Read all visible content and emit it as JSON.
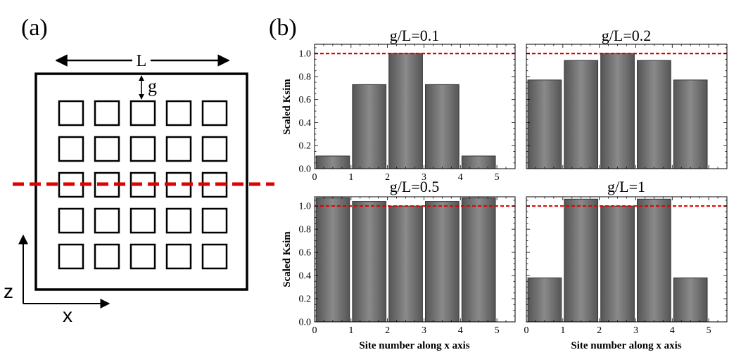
{
  "colors": {
    "bar": "#6e6e6e",
    "bar_light": "#9a9a9a",
    "bar_dark": "#505050",
    "reference_line": "#e00000",
    "outline": "#000000"
  },
  "panel_a": {
    "label": "(a)",
    "dimension_L": "L",
    "dimension_g": "g",
    "axis_z": "z",
    "axis_x": "x",
    "grid_rows": 5,
    "grid_cols": 5
  },
  "panel_b": {
    "label": "(b)"
  },
  "chart_data": [
    {
      "type": "bar",
      "title": "g/L=0.1",
      "categories": [
        "0.5",
        "1.5",
        "2.5",
        "3.5",
        "4.5"
      ],
      "values": [
        0.11,
        0.73,
        1.0,
        0.73,
        0.11
      ],
      "reference_line": 1.0,
      "xlim": [
        0,
        5.5
      ],
      "ylim": [
        0,
        1.08
      ],
      "xticks": [
        "0",
        "1",
        "2",
        "3",
        "4",
        "5"
      ],
      "yticks": [
        "0.0",
        "0.2",
        "0.4",
        "0.6",
        "0.8",
        "1.0"
      ],
      "xlabel": "",
      "ylabel": "Scaled Ksim"
    },
    {
      "type": "bar",
      "title": "g/L=0.2",
      "categories": [
        "0.5",
        "1.5",
        "2.5",
        "3.5",
        "4.5"
      ],
      "values": [
        0.77,
        0.94,
        1.0,
        0.94,
        0.77
      ],
      "reference_line": 1.0,
      "xlim": [
        0,
        5.5
      ],
      "ylim": [
        0,
        1.08
      ],
      "xticks": [],
      "yticks": [],
      "xlabel": "",
      "ylabel": ""
    },
    {
      "type": "bar",
      "title": "g/L=0.5",
      "categories": [
        "0.5",
        "1.5",
        "2.5",
        "3.5",
        "4.5"
      ],
      "values": [
        1.07,
        1.04,
        1.0,
        1.04,
        1.07
      ],
      "reference_line": 1.0,
      "xlim": [
        0,
        5.5
      ],
      "ylim": [
        0,
        1.08
      ],
      "xticks": [
        "0",
        "1",
        "2",
        "3",
        "4",
        "5"
      ],
      "yticks": [
        "0.0",
        "0.2",
        "0.4",
        "0.6",
        "0.8",
        "1.0"
      ],
      "xlabel": "Site number along x axis",
      "ylabel": "Scaled Ksim"
    },
    {
      "type": "bar",
      "title": "g/L=1",
      "categories": [
        "0.5",
        "1.5",
        "2.5",
        "3.5",
        "4.5"
      ],
      "values": [
        0.38,
        1.06,
        1.0,
        1.06,
        0.38
      ],
      "reference_line": 1.0,
      "xlim": [
        0,
        5.5
      ],
      "ylim": [
        0,
        1.08
      ],
      "xticks": [
        "0",
        "1",
        "2",
        "3",
        "4",
        "5"
      ],
      "yticks": [],
      "xlabel": "Site number along x axis",
      "ylabel": ""
    }
  ]
}
